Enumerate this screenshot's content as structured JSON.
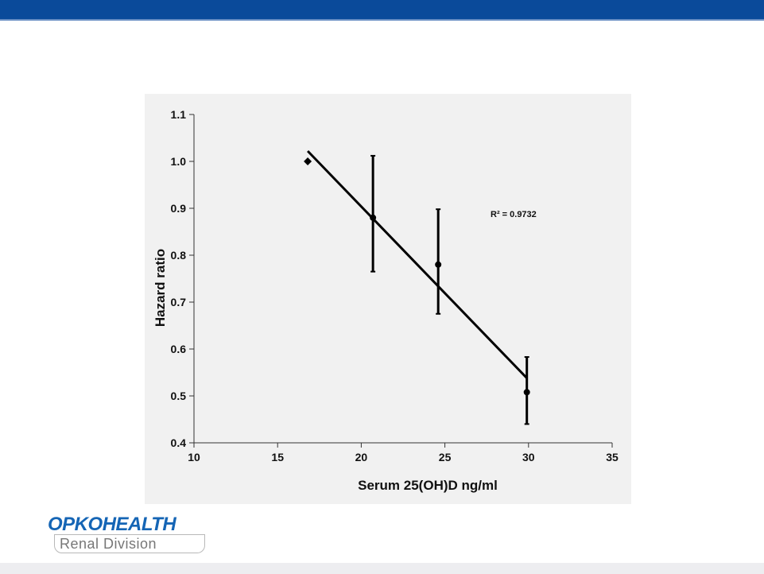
{
  "header": {
    "bar_color": "#0a4a9a"
  },
  "chart_data": {
    "type": "scatter",
    "xlabel": "Serum 25(OH)D ng/ml",
    "ylabel": "Hazard ratio",
    "xlim": [
      10,
      35
    ],
    "ylim": [
      0.4,
      1.1
    ],
    "x_ticks": [
      "10",
      "15",
      "20",
      "25",
      "30",
      "35"
    ],
    "y_ticks": [
      "0.4",
      "0.5",
      "0.6",
      "0.7",
      "0.8",
      "0.9",
      "1.0",
      "1.1"
    ],
    "grid": false,
    "points": [
      {
        "x": 16.8,
        "y": 1.0,
        "error": null,
        "marker": "diamond"
      },
      {
        "x": 20.7,
        "y": 0.88,
        "error": [
          0.765,
          1.012
        ],
        "marker": "circle"
      },
      {
        "x": 24.6,
        "y": 0.78,
        "error": [
          0.675,
          0.898
        ],
        "marker": "circle"
      },
      {
        "x": 29.9,
        "y": 0.508,
        "error": [
          0.44,
          0.583
        ],
        "marker": "circle"
      }
    ],
    "trendline": {
      "x": [
        16.8,
        29.9
      ],
      "y": [
        1.022,
        0.538
      ]
    },
    "annotation": "R² = 0.9732"
  },
  "logo": {
    "brand_part1": "OPKO",
    "brand_part2": "HEALTH",
    "subtitle": "Renal Division"
  }
}
